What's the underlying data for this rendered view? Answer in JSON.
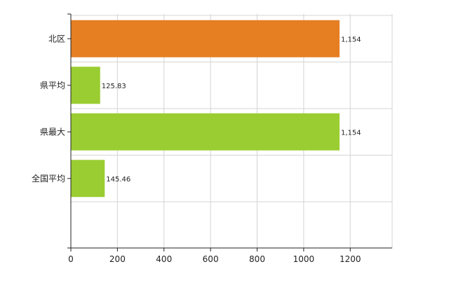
{
  "chart_data": {
    "type": "bar",
    "orientation": "horizontal",
    "categories": [
      "北区",
      "県平均",
      "県最大",
      "全国平均"
    ],
    "values": [
      1154,
      125.83,
      1154,
      145.46
    ],
    "data_labels": [
      "1,154",
      "125.83",
      "1,154",
      "145.46"
    ],
    "colors": [
      "#e67e22",
      "#9acd32",
      "#9acd32",
      "#9acd32"
    ],
    "x_ticks": [
      "0",
      "200",
      "400",
      "600",
      "800",
      "1000",
      "1200"
    ],
    "xlim": [
      0,
      1380
    ],
    "grid": true,
    "legend": "none",
    "title": "",
    "xlabel": "",
    "ylabel": ""
  }
}
